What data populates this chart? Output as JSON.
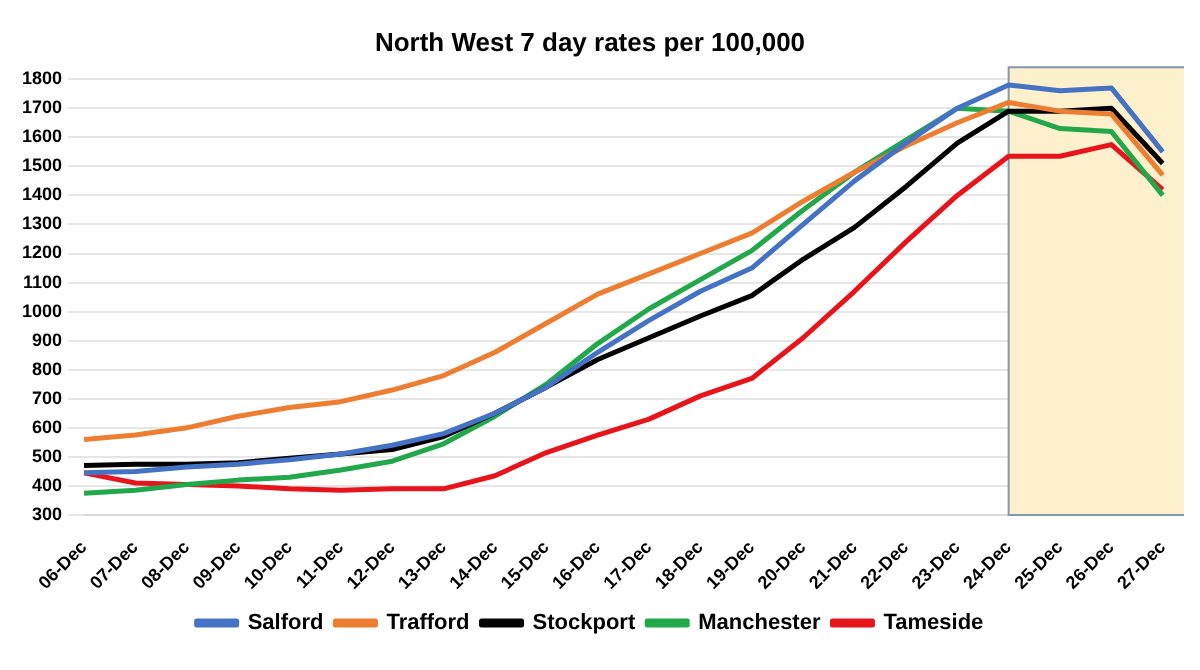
{
  "chart_data": {
    "type": "line",
    "title": "North West 7 day rates per 100,000",
    "categories": [
      "06-Dec",
      "07-Dec",
      "08-Dec",
      "09-Dec",
      "10-Dec",
      "11-Dec",
      "12-Dec",
      "13-Dec",
      "14-Dec",
      "15-Dec",
      "16-Dec",
      "17-Dec",
      "18-Dec",
      "19-Dec",
      "20-Dec",
      "21-Dec",
      "22-Dec",
      "23-Dec",
      "24-Dec",
      "25-Dec",
      "26-Dec",
      "27-Dec"
    ],
    "series": [
      {
        "name": "Salford",
        "color": "#4472c4",
        "values": [
          445,
          450,
          465,
          475,
          490,
          510,
          540,
          580,
          650,
          740,
          860,
          970,
          1070,
          1150,
          1300,
          1450,
          1580,
          1700,
          1780,
          1760,
          1770,
          1550
        ]
      },
      {
        "name": "Trafford",
        "color": "#ed7d31",
        "values": [
          560,
          575,
          600,
          640,
          670,
          690,
          730,
          780,
          860,
          960,
          1060,
          1130,
          1200,
          1270,
          1380,
          1480,
          1570,
          1650,
          1720,
          1690,
          1680,
          1470
        ]
      },
      {
        "name": "Stockport",
        "color": "#000000",
        "values": [
          470,
          475,
          475,
          480,
          495,
          510,
          525,
          570,
          650,
          740,
          835,
          910,
          985,
          1055,
          1180,
          1290,
          1430,
          1580,
          1690,
          1690,
          1700,
          1510
        ]
      },
      {
        "name": "Manchester",
        "color": "#21a84a",
        "values": [
          375,
          385,
          405,
          420,
          430,
          455,
          485,
          545,
          640,
          750,
          890,
          1010,
          1110,
          1210,
          1350,
          1480,
          1590,
          1700,
          1690,
          1630,
          1620,
          1400
        ]
      },
      {
        "name": "Tameside",
        "color": "#e8141c",
        "values": [
          445,
          410,
          405,
          400,
          390,
          385,
          390,
          390,
          435,
          515,
          575,
          630,
          710,
          770,
          910,
          1070,
          1240,
          1400,
          1535,
          1535,
          1575,
          1420
        ]
      }
    ],
    "ylim": [
      300,
      1800
    ],
    "yticks": [
      300,
      400,
      500,
      600,
      700,
      800,
      900,
      1000,
      1100,
      1200,
      1300,
      1400,
      1500,
      1600,
      1700,
      1800
    ],
    "bands": [
      {
        "axis": "x",
        "from": "24-Dec",
        "to": "27-Dec",
        "color": "#fdf0cc"
      }
    ],
    "grid": "y",
    "legend": "bottom",
    "marker": "none",
    "line_style": "solid"
  }
}
